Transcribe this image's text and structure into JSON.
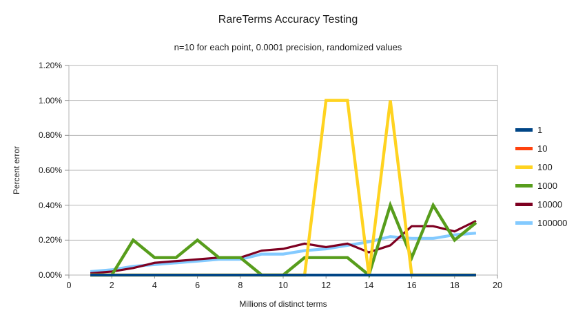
{
  "title": "RareTerms Accuracy Testing",
  "subtitle": "n=10 for each point, 0.0001 precision, randomized values",
  "chart_data": {
    "type": "line",
    "title": "RareTerms Accuracy Testing",
    "subtitle": "n=10 for each point, 0.0001 precision, randomized values",
    "xlabel": "Millions of distinct terms",
    "ylabel": "Percent error",
    "xlim": [
      0,
      20
    ],
    "ylim": [
      0,
      1.2
    ],
    "y_unit": "percent",
    "grid": "horizontal",
    "legend_position": "right",
    "x_ticks": [
      "0",
      "2",
      "4",
      "6",
      "8",
      "10",
      "12",
      "14",
      "16",
      "18",
      "20"
    ],
    "y_ticks": [
      "0.00%",
      "0.20%",
      "0.40%",
      "0.60%",
      "0.80%",
      "1.00%",
      "1.20%"
    ],
    "x": [
      1,
      2,
      3,
      4,
      5,
      6,
      7,
      8,
      9,
      10,
      11,
      12,
      13,
      14,
      15,
      16,
      17,
      18,
      19
    ],
    "series": [
      {
        "name": "1",
        "color": "#004586",
        "values": [
          0,
          0,
          0,
          0,
          0,
          0,
          0,
          0,
          0,
          0,
          0,
          0,
          0,
          0,
          0,
          0,
          0,
          0,
          0
        ]
      },
      {
        "name": "10",
        "color": "#FF420E",
        "values": [
          0,
          0,
          0,
          0,
          0,
          0,
          0,
          0,
          0,
          0,
          0,
          0,
          0,
          0,
          0,
          0,
          0,
          0,
          0
        ]
      },
      {
        "name": "100",
        "color": "#FFD320",
        "values": [
          0,
          0,
          0,
          0,
          0,
          0,
          0,
          0,
          0,
          0,
          0,
          1.0,
          1.0,
          0,
          1.0,
          0,
          0,
          0,
          0
        ]
      },
      {
        "name": "1000",
        "color": "#579D1C",
        "values": [
          0,
          0,
          0.2,
          0.1,
          0.1,
          0.2,
          0.1,
          0.1,
          0,
          0,
          0.1,
          0.1,
          0.1,
          0,
          0.4,
          0.1,
          0.4,
          0.2,
          0.3
        ]
      },
      {
        "name": "10000",
        "color": "#7E0021",
        "values": [
          0.01,
          0.02,
          0.04,
          0.07,
          0.08,
          0.09,
          0.1,
          0.1,
          0.14,
          0.15,
          0.18,
          0.16,
          0.18,
          0.13,
          0.17,
          0.28,
          0.28,
          0.25,
          0.31
        ]
      },
      {
        "name": "100000",
        "color": "#83CAFF",
        "values": [
          0.02,
          0.03,
          0.05,
          0.06,
          0.07,
          0.08,
          0.09,
          0.09,
          0.12,
          0.12,
          0.14,
          0.15,
          0.17,
          0.19,
          0.22,
          0.21,
          0.21,
          0.23,
          0.24
        ]
      }
    ]
  }
}
